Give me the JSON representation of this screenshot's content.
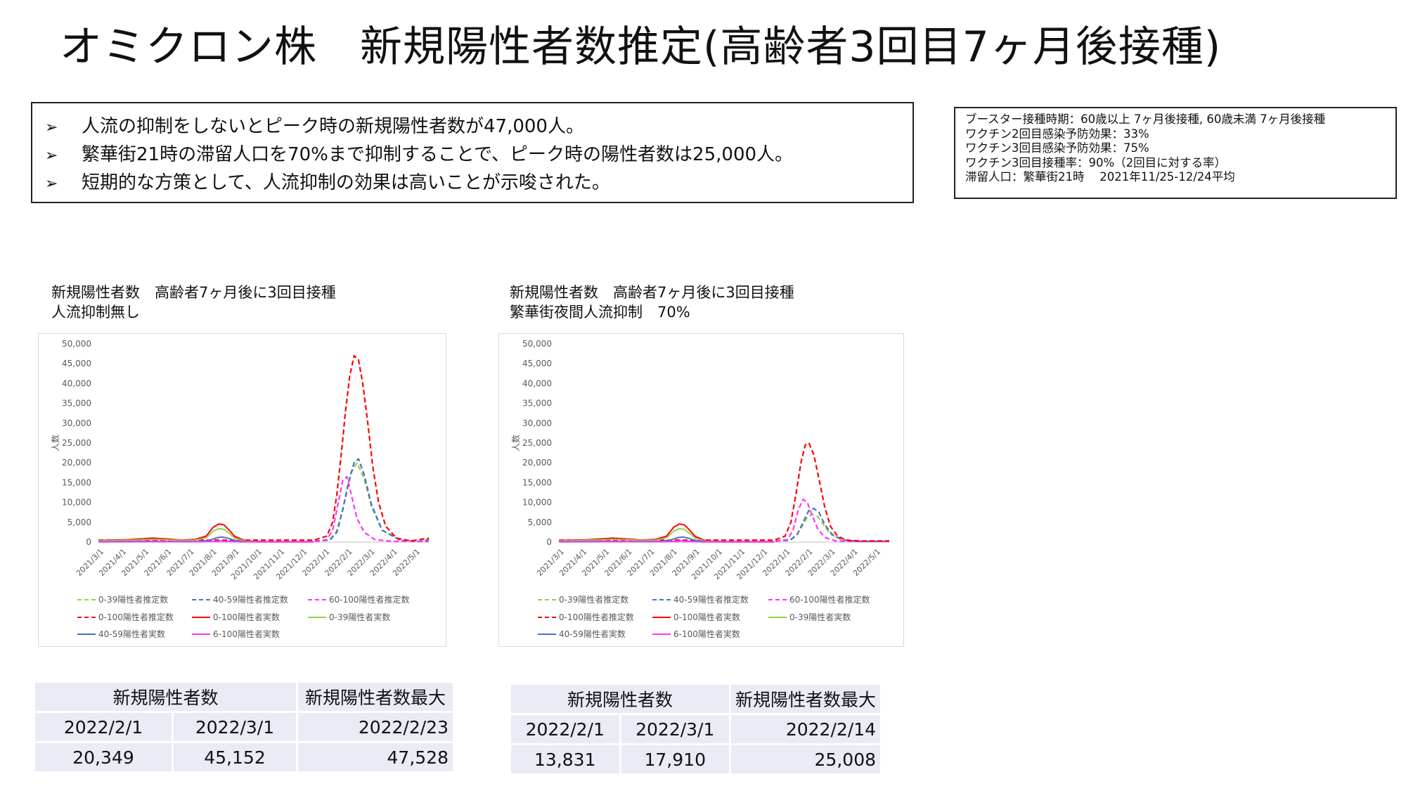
{
  "title": "オミクロン株　新規陽性者数推定(高齢者3回目7ヶ月後接種)",
  "summary": {
    "bullet": "➢",
    "items": [
      "人流の抑制をしないとピーク時の新規陽性者数が47,000人。",
      "繁華街21時の滞留人口を70%まで抑制することで、ピーク時の陽性者数は25,000人。",
      "短期的な方策として、人流抑制の効果は高いことが示唆された。"
    ]
  },
  "params": [
    "ブースター接種時期：60歳以上 7ヶ月後接種, 60歳未満 7ヶ月後接種",
    "ワクチン2回目感染予防効果：33%",
    "ワクチン3回目感染予防効果：75%",
    "ワクチン3回目接種率：90%（2回目に対する率）",
    "滞留人口：繁華街21時　 2021年11/25-12/24平均"
  ],
  "colors": {
    "green": "#92d050",
    "blue": "#4472c4",
    "magenta": "#ff33ff",
    "red": "#ff0000",
    "table_bg": "#e9ebf5"
  },
  "chart_data": [
    {
      "type": "line",
      "title_lines": [
        "新規陽性者数　高齢者7ヶ月後に3回目接種",
        "人流抑制無し"
      ],
      "ylabel": "人数",
      "ylim": [
        0,
        50000
      ],
      "yticks": [
        "0",
        "5,000",
        "10,000",
        "15,000",
        "20,000",
        "25,000",
        "30,000",
        "35,000",
        "40,000",
        "45,000",
        "50,000"
      ],
      "xlim": [
        0,
        460
      ],
      "xtick_labels": [
        "2021/3/1",
        "2021/4/1",
        "2021/5/1",
        "2021/6/1",
        "2021/7/1",
        "2021/8/1",
        "2021/9/1",
        "2021/10/1",
        "2021/11/1",
        "2021/12/1",
        "2022/1/1",
        "2022/2/1",
        "2022/3/1",
        "2022/4/1",
        "2022/5/1"
      ],
      "legend": [
        "0-39陽性者推定数",
        "40-59陽性者推定数",
        "60-100陽性者推定数",
        "0-100陽性者推定数",
        "0-100陽性者実数",
        "0-39陽性者実数",
        "40-59陽性者実数",
        "6-100陽性者実数"
      ],
      "legend_placement": "bottom",
      "series": [
        {
          "name": "0-39陽性者推定数",
          "color": "#92d050",
          "dashed": true,
          "x": [
            0,
            300,
            320,
            330,
            337,
            345,
            352,
            360,
            370,
            380,
            395,
            420,
            450,
            460
          ],
          "y": [
            300,
            300,
            500,
            2000,
            6000,
            12000,
            17500,
            20000,
            16000,
            9000,
            3000,
            500,
            200,
            800
          ]
        },
        {
          "name": "40-59陽性者推定数",
          "color": "#4472c4",
          "dashed": true,
          "x": [
            0,
            300,
            322,
            332,
            340,
            348,
            356,
            362,
            370,
            380,
            395,
            420,
            450,
            460
          ],
          "y": [
            200,
            200,
            500,
            2500,
            8000,
            15000,
            20000,
            21000,
            17000,
            9500,
            3000,
            500,
            200,
            600
          ]
        },
        {
          "name": "60-100陽性者推定数",
          "color": "#ff33ff",
          "dashed": true,
          "x": [
            0,
            300,
            318,
            326,
            333,
            340,
            346,
            352,
            360,
            370,
            385,
            410,
            460
          ],
          "y": [
            150,
            150,
            600,
            3000,
            9000,
            15500,
            16500,
            12000,
            6000,
            2500,
            600,
            200,
            200
          ]
        },
        {
          "name": "0-100陽性者推定数",
          "color": "#ff0000",
          "dashed": true,
          "x": [
            0,
            300,
            318,
            326,
            332,
            338,
            344,
            350,
            356,
            362,
            368,
            375,
            382,
            390,
            400,
            415,
            435,
            460
          ],
          "y": [
            500,
            500,
            1500,
            5000,
            12000,
            22000,
            33000,
            42000,
            47000,
            46000,
            40000,
            30000,
            19000,
            10000,
            4000,
            1000,
            300,
            1000
          ]
        },
        {
          "name": "0-100陽性者実数",
          "color": "#ff0000",
          "dashed": false,
          "x": [
            0,
            40,
            75,
            95,
            115,
            135,
            150,
            160,
            168,
            175,
            182,
            190,
            205,
            230,
            300
          ],
          "y": [
            400,
            600,
            1000,
            800,
            500,
            700,
            1500,
            3800,
            4600,
            4300,
            3000,
            1400,
            300,
            100,
            100
          ]
        },
        {
          "name": "0-39陽性者実数",
          "color": "#92d050",
          "dashed": false,
          "x": [
            0,
            40,
            75,
            95,
            115,
            135,
            150,
            160,
            168,
            175,
            182,
            190,
            205,
            230,
            300
          ],
          "y": [
            300,
            450,
            700,
            600,
            400,
            500,
            1100,
            2800,
            3400,
            3200,
            2200,
            1000,
            200,
            80,
            80
          ]
        },
        {
          "name": "40-59陽性者実数",
          "color": "#4472c4",
          "dashed": false,
          "x": [
            0,
            60,
            100,
            140,
            155,
            165,
            172,
            180,
            190,
            205,
            230,
            300
          ],
          "y": [
            100,
            200,
            150,
            200,
            500,
            1100,
            1300,
            1000,
            400,
            100,
            50,
            50
          ]
        },
        {
          "name": "6-100陽性者実数",
          "color": "#ff33ff",
          "dashed": false,
          "x": [
            0,
            60,
            140,
            160,
            170,
            180,
            200,
            300
          ],
          "y": [
            50,
            80,
            80,
            200,
            300,
            200,
            50,
            50
          ]
        }
      ]
    },
    {
      "type": "line",
      "title_lines": [
        "新規陽性者数　高齢者7ヶ月後に3回目接種",
        "繁華街夜間人流抑制　70%"
      ],
      "ylabel": "人数",
      "ylim": [
        0,
        50000
      ],
      "yticks": [
        "0",
        "5,000",
        "10,000",
        "15,000",
        "20,000",
        "25,000",
        "30,000",
        "35,000",
        "40,000",
        "45,000",
        "50,000"
      ],
      "xlim": [
        0,
        460
      ],
      "xtick_labels": [
        "2021/3/1",
        "2021/4/1",
        "2021/5/1",
        "2021/6/1",
        "2021/7/1",
        "2021/8/1",
        "2021/9/1",
        "2021/10/1",
        "2021/11/1",
        "2021/12/1",
        "2022/1/1",
        "2022/2/1",
        "2022/3/1",
        "2022/4/1",
        "2022/5/1"
      ],
      "legend": [
        "0-39陽性者推定数",
        "40-59陽性者推定数",
        "60-100陽性者推定数",
        "0-100陽性者推定数",
        "0-100陽性者実数",
        "0-39陽性者実数",
        "40-59陽性者実数",
        "6-100陽性者実数"
      ],
      "legend_placement": "bottom",
      "series": [
        {
          "name": "0-39陽性者推定数",
          "color": "#92d050",
          "dashed": true,
          "x": [
            0,
            300,
            322,
            330,
            337,
            345,
            352,
            360,
            368,
            378,
            395,
            420,
            460
          ],
          "y": [
            300,
            300,
            500,
            1500,
            3500,
            6000,
            7000,
            6500,
            4500,
            2000,
            500,
            200,
            200
          ]
        },
        {
          "name": "40-59陽性者推定数",
          "color": "#4472c4",
          "dashed": true,
          "x": [
            0,
            300,
            322,
            332,
            340,
            348,
            355,
            362,
            370,
            380,
            395,
            420,
            460
          ],
          "y": [
            200,
            200,
            500,
            2000,
            5000,
            8000,
            8500,
            7500,
            4500,
            2000,
            500,
            200,
            200
          ]
        },
        {
          "name": "60-100陽性者推定数",
          "color": "#ff33ff",
          "dashed": true,
          "x": [
            0,
            300,
            318,
            326,
            333,
            340,
            346,
            352,
            360,
            370,
            385,
            410,
            460
          ],
          "y": [
            150,
            150,
            600,
            3000,
            8000,
            10800,
            10000,
            7000,
            3500,
            1200,
            300,
            150,
            150
          ]
        },
        {
          "name": "0-100陽性者推定数",
          "color": "#ff0000",
          "dashed": true,
          "x": [
            0,
            300,
            315,
            323,
            330,
            337,
            343,
            348,
            355,
            362,
            370,
            378,
            388,
            400,
            420,
            460
          ],
          "y": [
            500,
            500,
            1500,
            5000,
            12000,
            20000,
            24500,
            25000,
            22000,
            16000,
            9000,
            4000,
            1500,
            500,
            300,
            300
          ]
        },
        {
          "name": "0-100陽性者実数",
          "color": "#ff0000",
          "dashed": false,
          "x": [
            0,
            40,
            75,
            95,
            115,
            135,
            150,
            160,
            168,
            175,
            182,
            190,
            205,
            230,
            300
          ],
          "y": [
            400,
            600,
            1000,
            800,
            500,
            700,
            1500,
            3800,
            4600,
            4300,
            3000,
            1400,
            300,
            100,
            100
          ]
        },
        {
          "name": "0-39陽性者実数",
          "color": "#92d050",
          "dashed": false,
          "x": [
            0,
            40,
            75,
            95,
            115,
            135,
            150,
            160,
            168,
            175,
            182,
            190,
            205,
            230,
            300
          ],
          "y": [
            300,
            450,
            700,
            600,
            400,
            500,
            1100,
            2800,
            3400,
            3200,
            2200,
            1000,
            200,
            80,
            80
          ]
        },
        {
          "name": "40-59陽性者実数",
          "color": "#4472c4",
          "dashed": false,
          "x": [
            0,
            60,
            100,
            140,
            155,
            165,
            172,
            180,
            190,
            205,
            230,
            300
          ],
          "y": [
            100,
            200,
            150,
            200,
            500,
            1100,
            1300,
            1000,
            400,
            100,
            50,
            50
          ]
        },
        {
          "name": "6-100陽性者実数",
          "color": "#ff33ff",
          "dashed": false,
          "x": [
            0,
            60,
            140,
            160,
            170,
            180,
            200,
            300
          ],
          "y": [
            50,
            80,
            80,
            200,
            300,
            200,
            50,
            50
          ]
        }
      ]
    }
  ],
  "tables": [
    {
      "header_left": "新規陽性者数",
      "header_right": "新規陽性者数最大",
      "date1": "2022/2/1",
      "date2": "2022/3/1",
      "peak_date": "2022/2/23",
      "val1": "20,349",
      "val2": "45,152",
      "peak_val": "47,528"
    },
    {
      "header_left": "新規陽性者数",
      "header_right": "新規陽性者数最大",
      "date1": "2022/2/1",
      "date2": "2022/3/1",
      "peak_date": "2022/2/14",
      "val1": "13,831",
      "val2": "17,910",
      "peak_val": "25,008"
    }
  ]
}
